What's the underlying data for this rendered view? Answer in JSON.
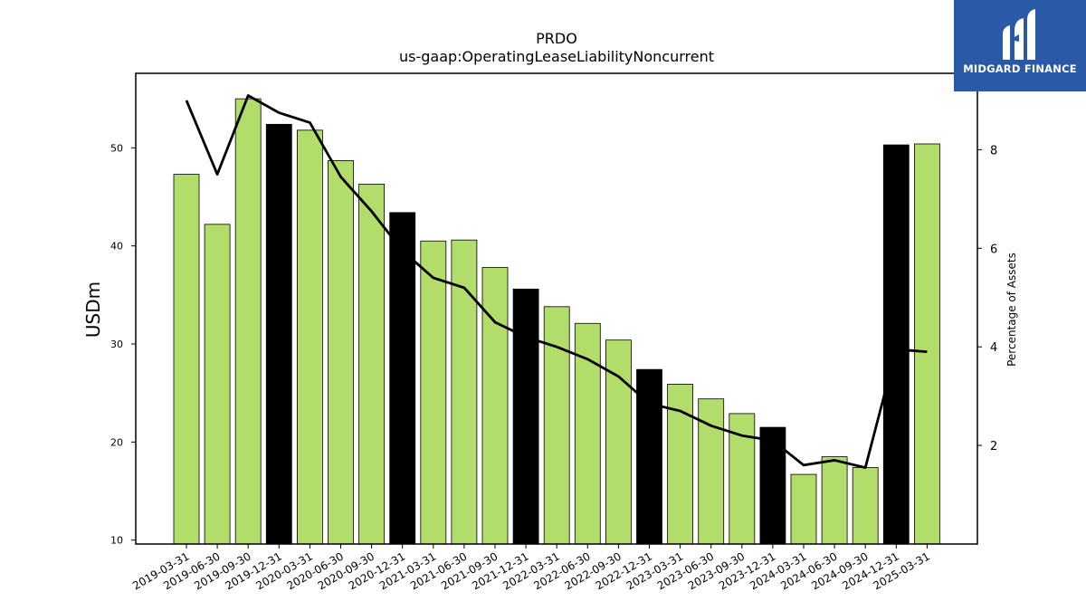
{
  "brand": {
    "name": "MIDGARD FINANCE",
    "bg_color": "#2a59a8"
  },
  "chart_data": {
    "type": "bar",
    "title": "PRDO",
    "subtitle": "us-gaap:OperatingLeaseLiabilityNoncurrent",
    "ylabel": "USDm",
    "y2label": "Percentage of Assets",
    "ylim": [
      9.6,
      57.6
    ],
    "y2lim": [
      0,
      9.55
    ],
    "yticks": [
      10,
      20,
      30,
      40,
      50
    ],
    "y2ticks": [
      2,
      4,
      6,
      8
    ],
    "categories": [
      "2019-03-31",
      "2019-06-30",
      "2019-09-30",
      "2019-12-31",
      "2020-03-31",
      "2020-06-30",
      "2020-09-30",
      "2020-12-31",
      "2021-03-31",
      "2021-06-30",
      "2021-09-30",
      "2021-12-31",
      "2022-03-31",
      "2022-06-30",
      "2022-09-30",
      "2022-12-31",
      "2023-03-31",
      "2023-06-30",
      "2023-09-30",
      "2023-12-31",
      "2024-03-31",
      "2024-06-30",
      "2024-09-30",
      "2024-12-31",
      "2025-03-31"
    ],
    "series": [
      {
        "axis": "left",
        "kind": "bar",
        "values": [
          47.3,
          42.2,
          55.0,
          52.4,
          51.8,
          48.7,
          46.3,
          43.4,
          40.5,
          40.6,
          37.8,
          35.6,
          33.8,
          32.1,
          30.4,
          27.4,
          25.9,
          24.4,
          22.9,
          21.5,
          16.7,
          18.5,
          17.4,
          50.3,
          50.4
        ]
      },
      {
        "axis": "right",
        "kind": "line",
        "values": [
          9.0,
          7.5,
          9.1,
          8.75,
          8.55,
          7.45,
          6.75,
          5.95,
          5.4,
          5.2,
          4.5,
          4.2,
          4.0,
          3.75,
          3.4,
          2.85,
          2.7,
          2.4,
          2.2,
          2.1,
          1.6,
          1.7,
          1.55,
          3.95,
          3.9
        ]
      }
    ],
    "colors": {
      "bar": "#b2dd6a",
      "bar_highlight": "#000000",
      "line": "#000000"
    },
    "highlight_categories": [
      "2019-12-31",
      "2020-12-31",
      "2021-12-31",
      "2022-12-31",
      "2023-12-31",
      "2024-12-31"
    ],
    "grid": false,
    "legend": "none"
  }
}
